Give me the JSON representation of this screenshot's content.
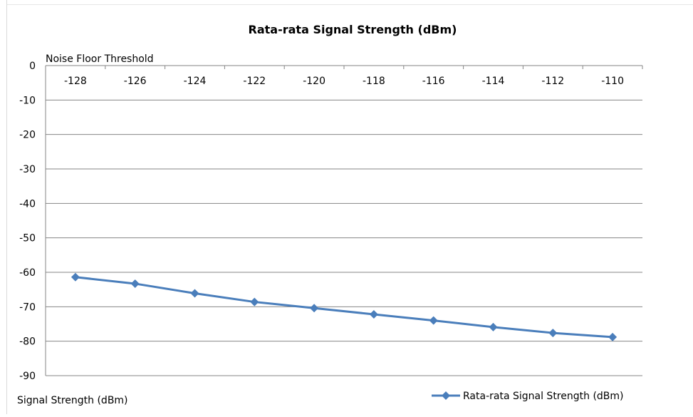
{
  "chart_data": {
    "type": "line",
    "title": "Rata-rata Signal Strength (dBm)",
    "x_axis_title": "Noise Floor Threshold",
    "y_axis_title": "Signal Strength (dBm)",
    "x_axis_position": "top",
    "categories": [
      "-128",
      "-126",
      "-124",
      "-122",
      "-120",
      "-118",
      "-116",
      "-114",
      "-112",
      "-110"
    ],
    "y_ticks": [
      "0",
      "-10",
      "-20",
      "-30",
      "-40",
      "-50",
      "-60",
      "-70",
      "-80",
      "-90"
    ],
    "ylim": [
      -90,
      0
    ],
    "grid": true,
    "legend_position": "bottom-right",
    "series": [
      {
        "name": "Rata-rata Signal Strength (dBm)",
        "color": "#4a7ebb",
        "marker": "diamond",
        "values": [
          -61.4,
          -63.3,
          -66.1,
          -68.6,
          -70.4,
          -72.2,
          -74.0,
          -75.9,
          -77.6,
          -78.8
        ]
      }
    ]
  }
}
